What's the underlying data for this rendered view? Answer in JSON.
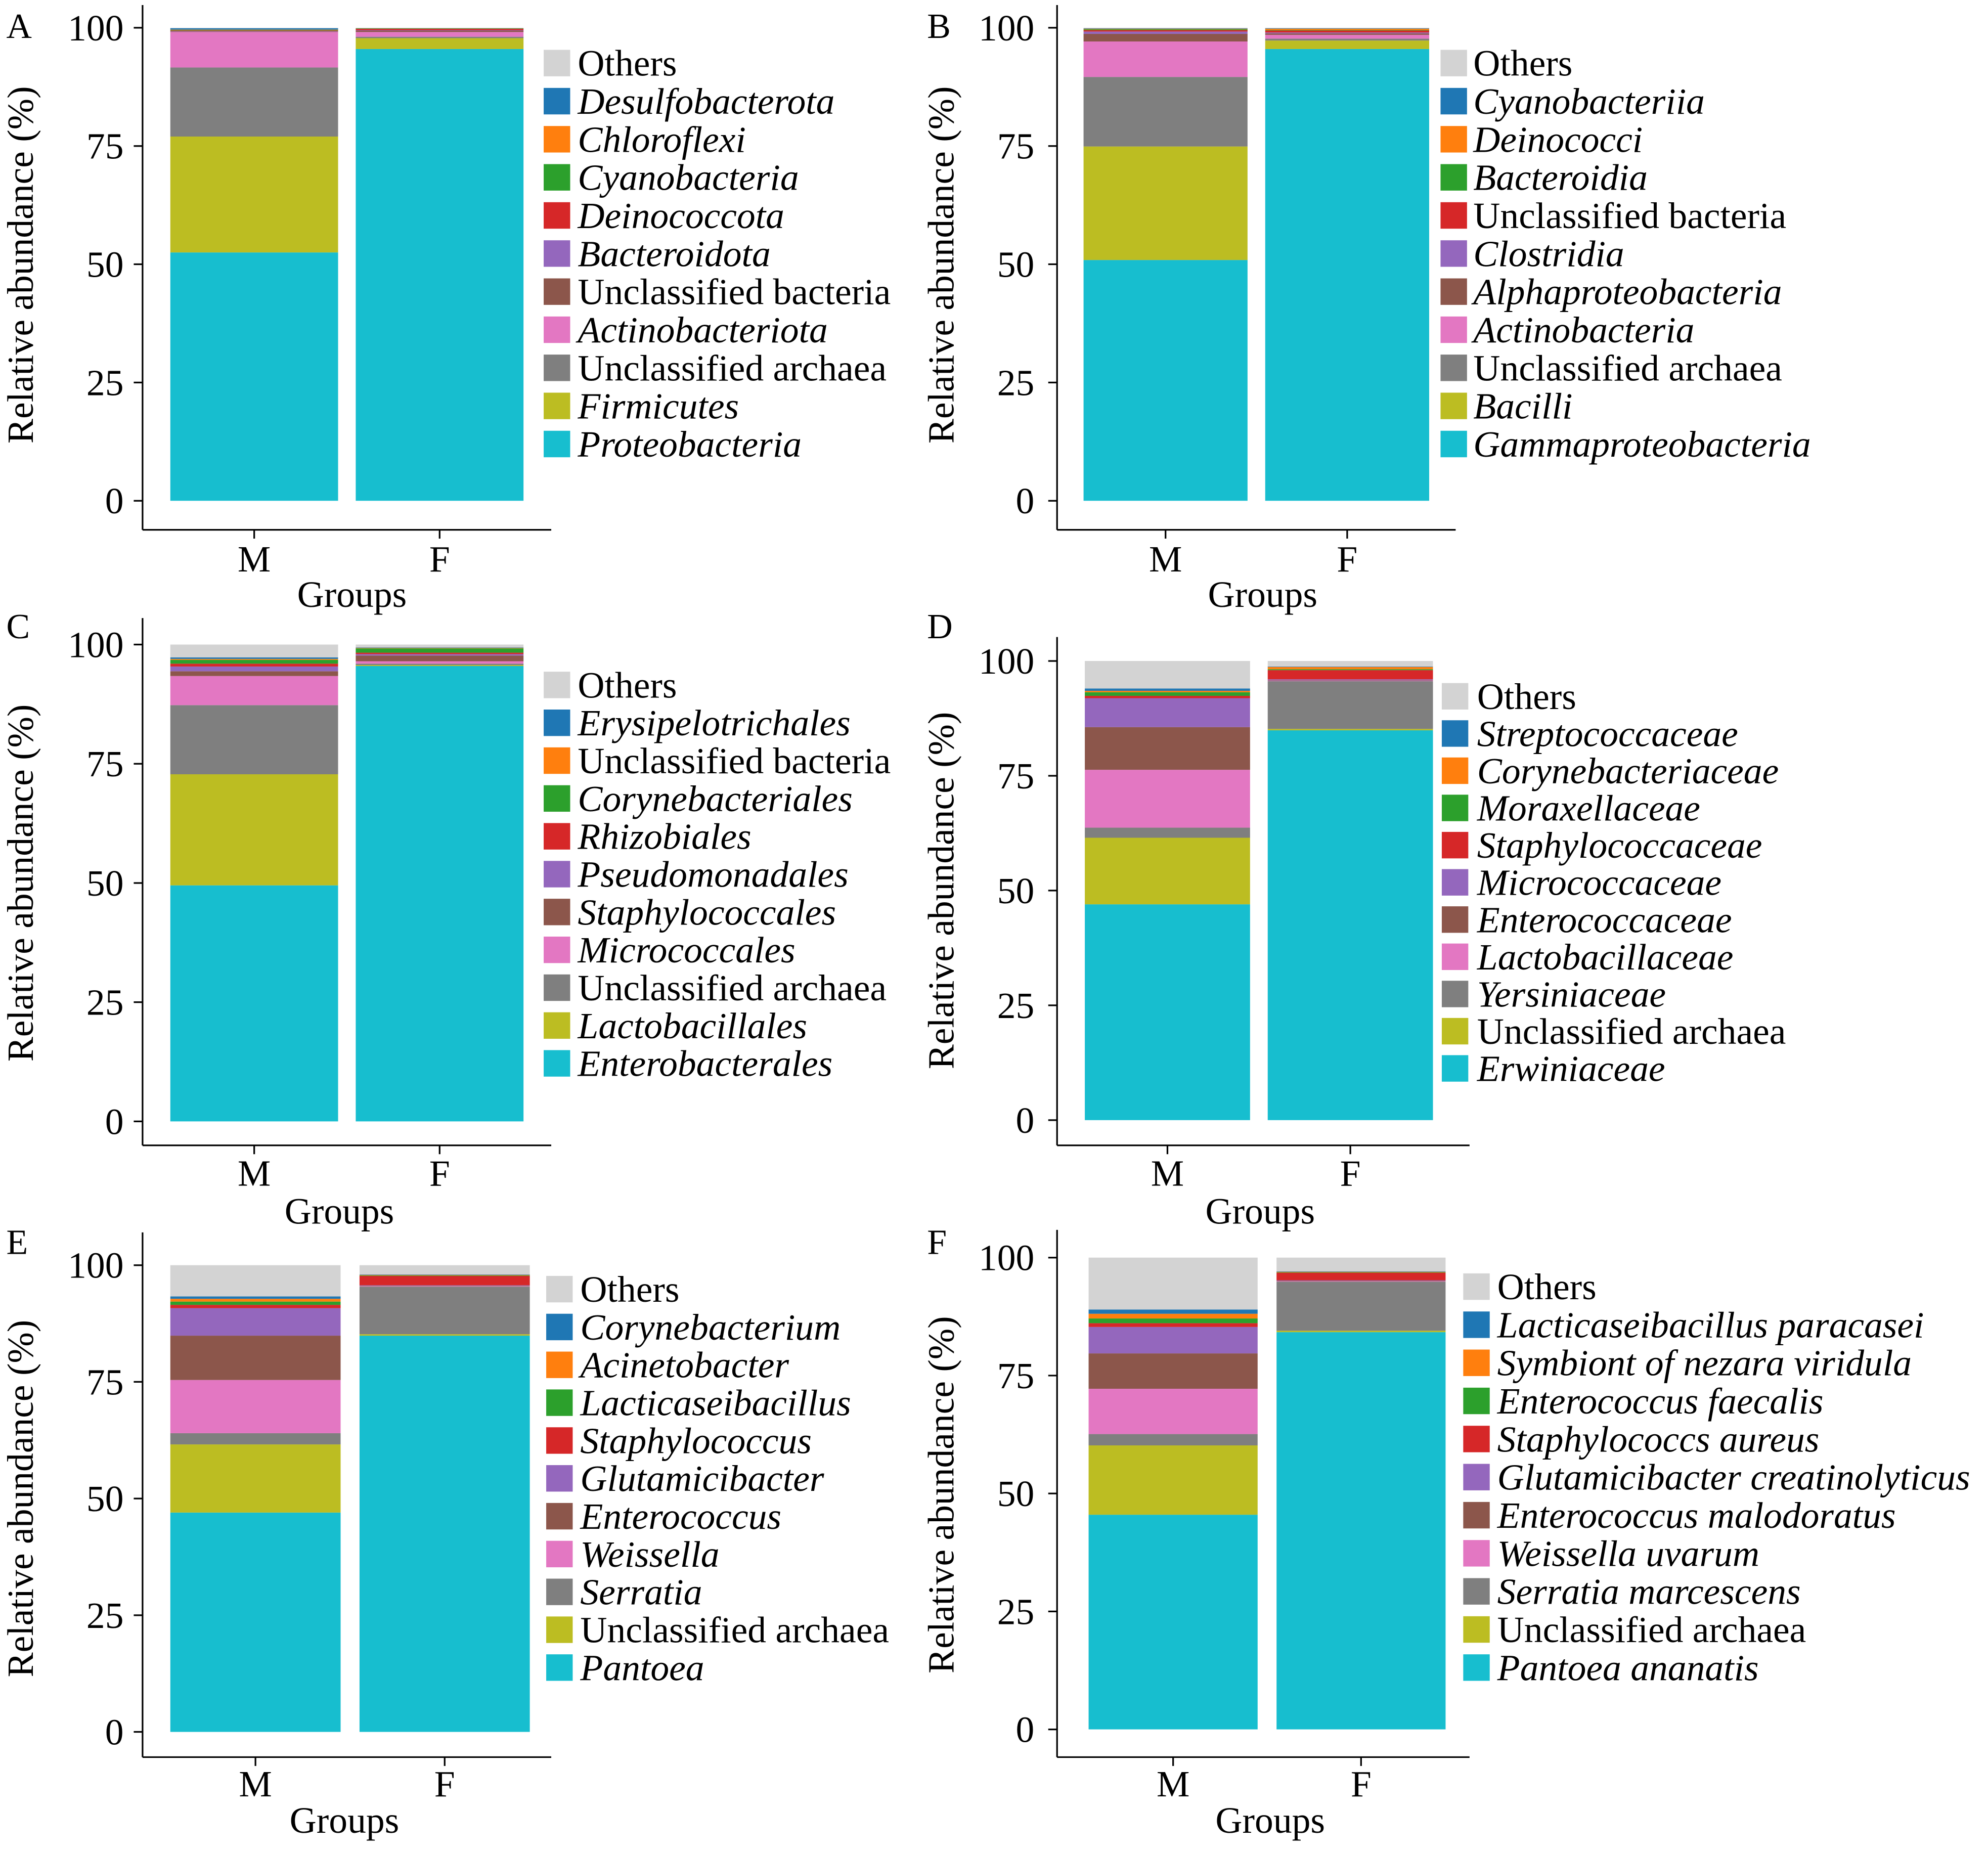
{
  "chart_data": [
    {
      "type": "bar",
      "stacked": true,
      "panel_label": "A",
      "categories": [
        "M",
        "F"
      ],
      "xlabel": "Groups",
      "ylabel": "Relative abundance (%)",
      "ylim": [
        0,
        100
      ],
      "yticks": [
        0,
        25,
        50,
        75,
        100
      ],
      "legend_position": "right",
      "series": [
        {
          "name": "Others",
          "color": "#d3d3d3",
          "values": [
            0.1,
            0.1
          ]
        },
        {
          "name": "Desulfobacterota",
          "color": "#1f77b4",
          "values": [
            0.3,
            0.0
          ]
        },
        {
          "name": "Chloroflexi",
          "color": "#ff7f0e",
          "values": [
            0.1,
            0.0
          ]
        },
        {
          "name": "Cyanobacteria",
          "color": "#2ca02c",
          "values": [
            0.1,
            0.1
          ]
        },
        {
          "name": "Deinococcota",
          "color": "#d62728",
          "values": [
            0.1,
            0.3
          ]
        },
        {
          "name": "Bacteroidota",
          "color": "#9467bd",
          "values": [
            0.1,
            0.1
          ]
        },
        {
          "name": "Unclassified bacteria",
          "color": "#8c564b",
          "values": [
            0.1,
            0.3
          ]
        },
        {
          "name": "Actinobacteriota",
          "color": "#e377c2",
          "values": [
            7.5,
            1.0
          ]
        },
        {
          "name": "Unclassified archaea",
          "color": "#7f7f7f",
          "values": [
            14.6,
            0.3
          ]
        },
        {
          "name": "Firmicutes",
          "color": "#bcbd22",
          "values": [
            24.5,
            2.3
          ]
        },
        {
          "name": "Proteobacteria",
          "color": "#17becf",
          "values": [
            52.5,
            95.5
          ]
        }
      ]
    },
    {
      "type": "bar",
      "stacked": true,
      "panel_label": "B",
      "categories": [
        "M",
        "F"
      ],
      "xlabel": "Groups",
      "ylabel": "Relative abundance (%)",
      "ylim": [
        0,
        100
      ],
      "yticks": [
        0,
        25,
        50,
        75,
        100
      ],
      "legend_position": "right",
      "series": [
        {
          "name": "Others",
          "color": "#d3d3d3",
          "values": [
            0.1,
            0.1
          ]
        },
        {
          "name": "Cyanobacteriia",
          "color": "#1f77b4",
          "values": [
            0.1,
            0.1
          ]
        },
        {
          "name": "Deinococci",
          "color": "#ff7f0e",
          "values": [
            0.1,
            0.3
          ]
        },
        {
          "name": "Bacteroidia",
          "color": "#2ca02c",
          "values": [
            0.2,
            0.1
          ]
        },
        {
          "name": "Unclassified bacteria",
          "color": "#d62728",
          "values": [
            0.3,
            0.4
          ]
        },
        {
          "name": "Clostridia",
          "color": "#9467bd",
          "values": [
            0.5,
            0.2
          ]
        },
        {
          "name": "Alphaproteobacteria",
          "color": "#8c564b",
          "values": [
            1.6,
            0.3
          ]
        },
        {
          "name": "Actinobacteria",
          "color": "#e377c2",
          "values": [
            7.5,
            0.8
          ]
        },
        {
          "name": "Unclassified archaea",
          "color": "#7f7f7f",
          "values": [
            14.7,
            0.4
          ]
        },
        {
          "name": "Bacilli",
          "color": "#bcbd22",
          "values": [
            24.0,
            1.8
          ]
        },
        {
          "name": "Gammaproteobacteria",
          "color": "#17becf",
          "values": [
            50.9,
            95.5
          ]
        }
      ]
    },
    {
      "type": "bar",
      "stacked": true,
      "panel_label": "C",
      "categories": [
        "M",
        "F"
      ],
      "xlabel": "Groups",
      "ylabel": "Relative abundance (%)",
      "ylim": [
        0,
        100
      ],
      "yticks": [
        0,
        25,
        50,
        75,
        100
      ],
      "legend_position": "right",
      "series": [
        {
          "name": "Others",
          "color": "#d3d3d3",
          "values": [
            2.7,
            0.6
          ]
        },
        {
          "name": "Erysipelotrichales",
          "color": "#1f77b4",
          "values": [
            0.3,
            0.1
          ]
        },
        {
          "name": "Unclassified bacteria",
          "color": "#ff7f0e",
          "values": [
            0.2,
            0.1
          ]
        },
        {
          "name": "Corynebacteriales",
          "color": "#2ca02c",
          "values": [
            0.8,
            0.9
          ]
        },
        {
          "name": "Rhizobiales",
          "color": "#d62728",
          "values": [
            0.6,
            0.3
          ]
        },
        {
          "name": "Pseudomonadales",
          "color": "#9467bd",
          "values": [
            1.0,
            0.3
          ]
        },
        {
          "name": "Staphylococcales",
          "color": "#8c564b",
          "values": [
            1.0,
            1.2
          ]
        },
        {
          "name": "Micrococcales",
          "color": "#e377c2",
          "values": [
            6.1,
            0.5
          ]
        },
        {
          "name": "Unclassified archaea",
          "color": "#7f7f7f",
          "values": [
            14.5,
            0.3
          ]
        },
        {
          "name": "Lactobacillales",
          "color": "#bcbd22",
          "values": [
            23.3,
            0.2
          ]
        },
        {
          "name": "Enterobacterales",
          "color": "#17becf",
          "values": [
            49.5,
            95.5
          ]
        }
      ]
    },
    {
      "type": "bar",
      "stacked": true,
      "panel_label": "D",
      "categories": [
        "M",
        "F"
      ],
      "xlabel": "Groups",
      "ylabel": "Relative abundance (%)",
      "ylim": [
        0,
        100
      ],
      "yticks": [
        0,
        25,
        50,
        75,
        100
      ],
      "legend_position": "right",
      "series": [
        {
          "name": "Others",
          "color": "#d3d3d3",
          "values": [
            6.0,
            1.2
          ]
        },
        {
          "name": "Streptococcaceae",
          "color": "#1f77b4",
          "values": [
            0.5,
            0.1
          ]
        },
        {
          "name": "Corynebacteriaceae",
          "color": "#ff7f0e",
          "values": [
            0.3,
            0.5
          ]
        },
        {
          "name": "Moraxellaceae",
          "color": "#2ca02c",
          "values": [
            0.8,
            0.2
          ]
        },
        {
          "name": "Staphylococcaceae",
          "color": "#d62728",
          "values": [
            0.5,
            2.0
          ]
        },
        {
          "name": "Micrococcaceae",
          "color": "#9467bd",
          "values": [
            6.3,
            0.2
          ]
        },
        {
          "name": "Enterococcaceae",
          "color": "#8c564b",
          "values": [
            9.3,
            0.1
          ]
        },
        {
          "name": "Lactobacillaceae",
          "color": "#e377c2",
          "values": [
            12.6,
            0.1
          ]
        },
        {
          "name": "Yersiniaceae",
          "color": "#7f7f7f",
          "values": [
            2.2,
            10.4
          ]
        },
        {
          "name": "Unclassified archaea",
          "color": "#bcbd22",
          "values": [
            14.5,
            0.3
          ]
        },
        {
          "name": "Erwiniaceae",
          "color": "#17becf",
          "values": [
            47.0,
            84.9
          ]
        }
      ]
    },
    {
      "type": "bar",
      "stacked": true,
      "panel_label": "E",
      "categories": [
        "M",
        "F"
      ],
      "xlabel": "Groups",
      "ylabel": "Relative abundance (%)",
      "ylim": [
        0,
        100
      ],
      "yticks": [
        0,
        25,
        50,
        75,
        100
      ],
      "legend_position": "right",
      "series": [
        {
          "name": "Others",
          "color": "#d3d3d3",
          "values": [
            6.7,
            2.0
          ]
        },
        {
          "name": "Corynebacterium",
          "color": "#1f77b4",
          "values": [
            0.5,
            0.1
          ]
        },
        {
          "name": "Acinetobacter",
          "color": "#ff7f0e",
          "values": [
            0.6,
            0.1
          ]
        },
        {
          "name": "Lacticaseibacillus",
          "color": "#2ca02c",
          "values": [
            0.7,
            0.1
          ]
        },
        {
          "name": "Staphylococcus",
          "color": "#d62728",
          "values": [
            0.7,
            2.0
          ]
        },
        {
          "name": "Glutamicibacter",
          "color": "#9467bd",
          "values": [
            5.9,
            0.1
          ]
        },
        {
          "name": "Enterococcus",
          "color": "#8c564b",
          "values": [
            9.5,
            0.1
          ]
        },
        {
          "name": "Weissella",
          "color": "#e377c2",
          "values": [
            11.4,
            0.1
          ]
        },
        {
          "name": "Serratia",
          "color": "#7f7f7f",
          "values": [
            2.4,
            10.2
          ]
        },
        {
          "name": "Unclassified archaea",
          "color": "#bcbd22",
          "values": [
            14.6,
            0.3
          ]
        },
        {
          "name": "Pantoea",
          "color": "#17becf",
          "values": [
            47.0,
            84.9
          ]
        }
      ]
    },
    {
      "type": "bar",
      "stacked": true,
      "panel_label": "F",
      "categories": [
        "M",
        "F"
      ],
      "xlabel": "Groups",
      "ylabel": "Relative abundance (%)",
      "ylim": [
        0,
        100
      ],
      "yticks": [
        0,
        25,
        50,
        75,
        100
      ],
      "legend_position": "right",
      "series": [
        {
          "name": "Others",
          "color": "#d3d3d3",
          "values": [
            11.0,
            2.9
          ]
        },
        {
          "name": "Lacticaseibacillus paracasei",
          "color": "#1f77b4",
          "values": [
            0.9,
            0.1
          ]
        },
        {
          "name": "Symbiont of nezara viridula",
          "color": "#ff7f0e",
          "values": [
            1.0,
            0.1
          ]
        },
        {
          "name": "Enterococcus faecalis",
          "color": "#2ca02c",
          "values": [
            1.0,
            0.1
          ]
        },
        {
          "name": "Staphylococcs aureus",
          "color": "#d62728",
          "values": [
            0.8,
            1.6
          ]
        },
        {
          "name": "Glutamicibacter creatinolyticus",
          "color": "#9467bd",
          "values": [
            5.6,
            0.1
          ]
        },
        {
          "name": "Enterococcus malodoratus",
          "color": "#8c564b",
          "values": [
            7.5,
            0.1
          ]
        },
        {
          "name": "Weissella uvarum",
          "color": "#e377c2",
          "values": [
            9.6,
            0.1
          ]
        },
        {
          "name": "Serratia marcescens",
          "color": "#7f7f7f",
          "values": [
            2.4,
            10.4
          ]
        },
        {
          "name": "Unclassified archaea",
          "color": "#bcbd22",
          "values": [
            14.7,
            0.3
          ]
        },
        {
          "name": "Pantoea ananatis",
          "color": "#17becf",
          "values": [
            45.5,
            84.2
          ]
        }
      ]
    }
  ]
}
